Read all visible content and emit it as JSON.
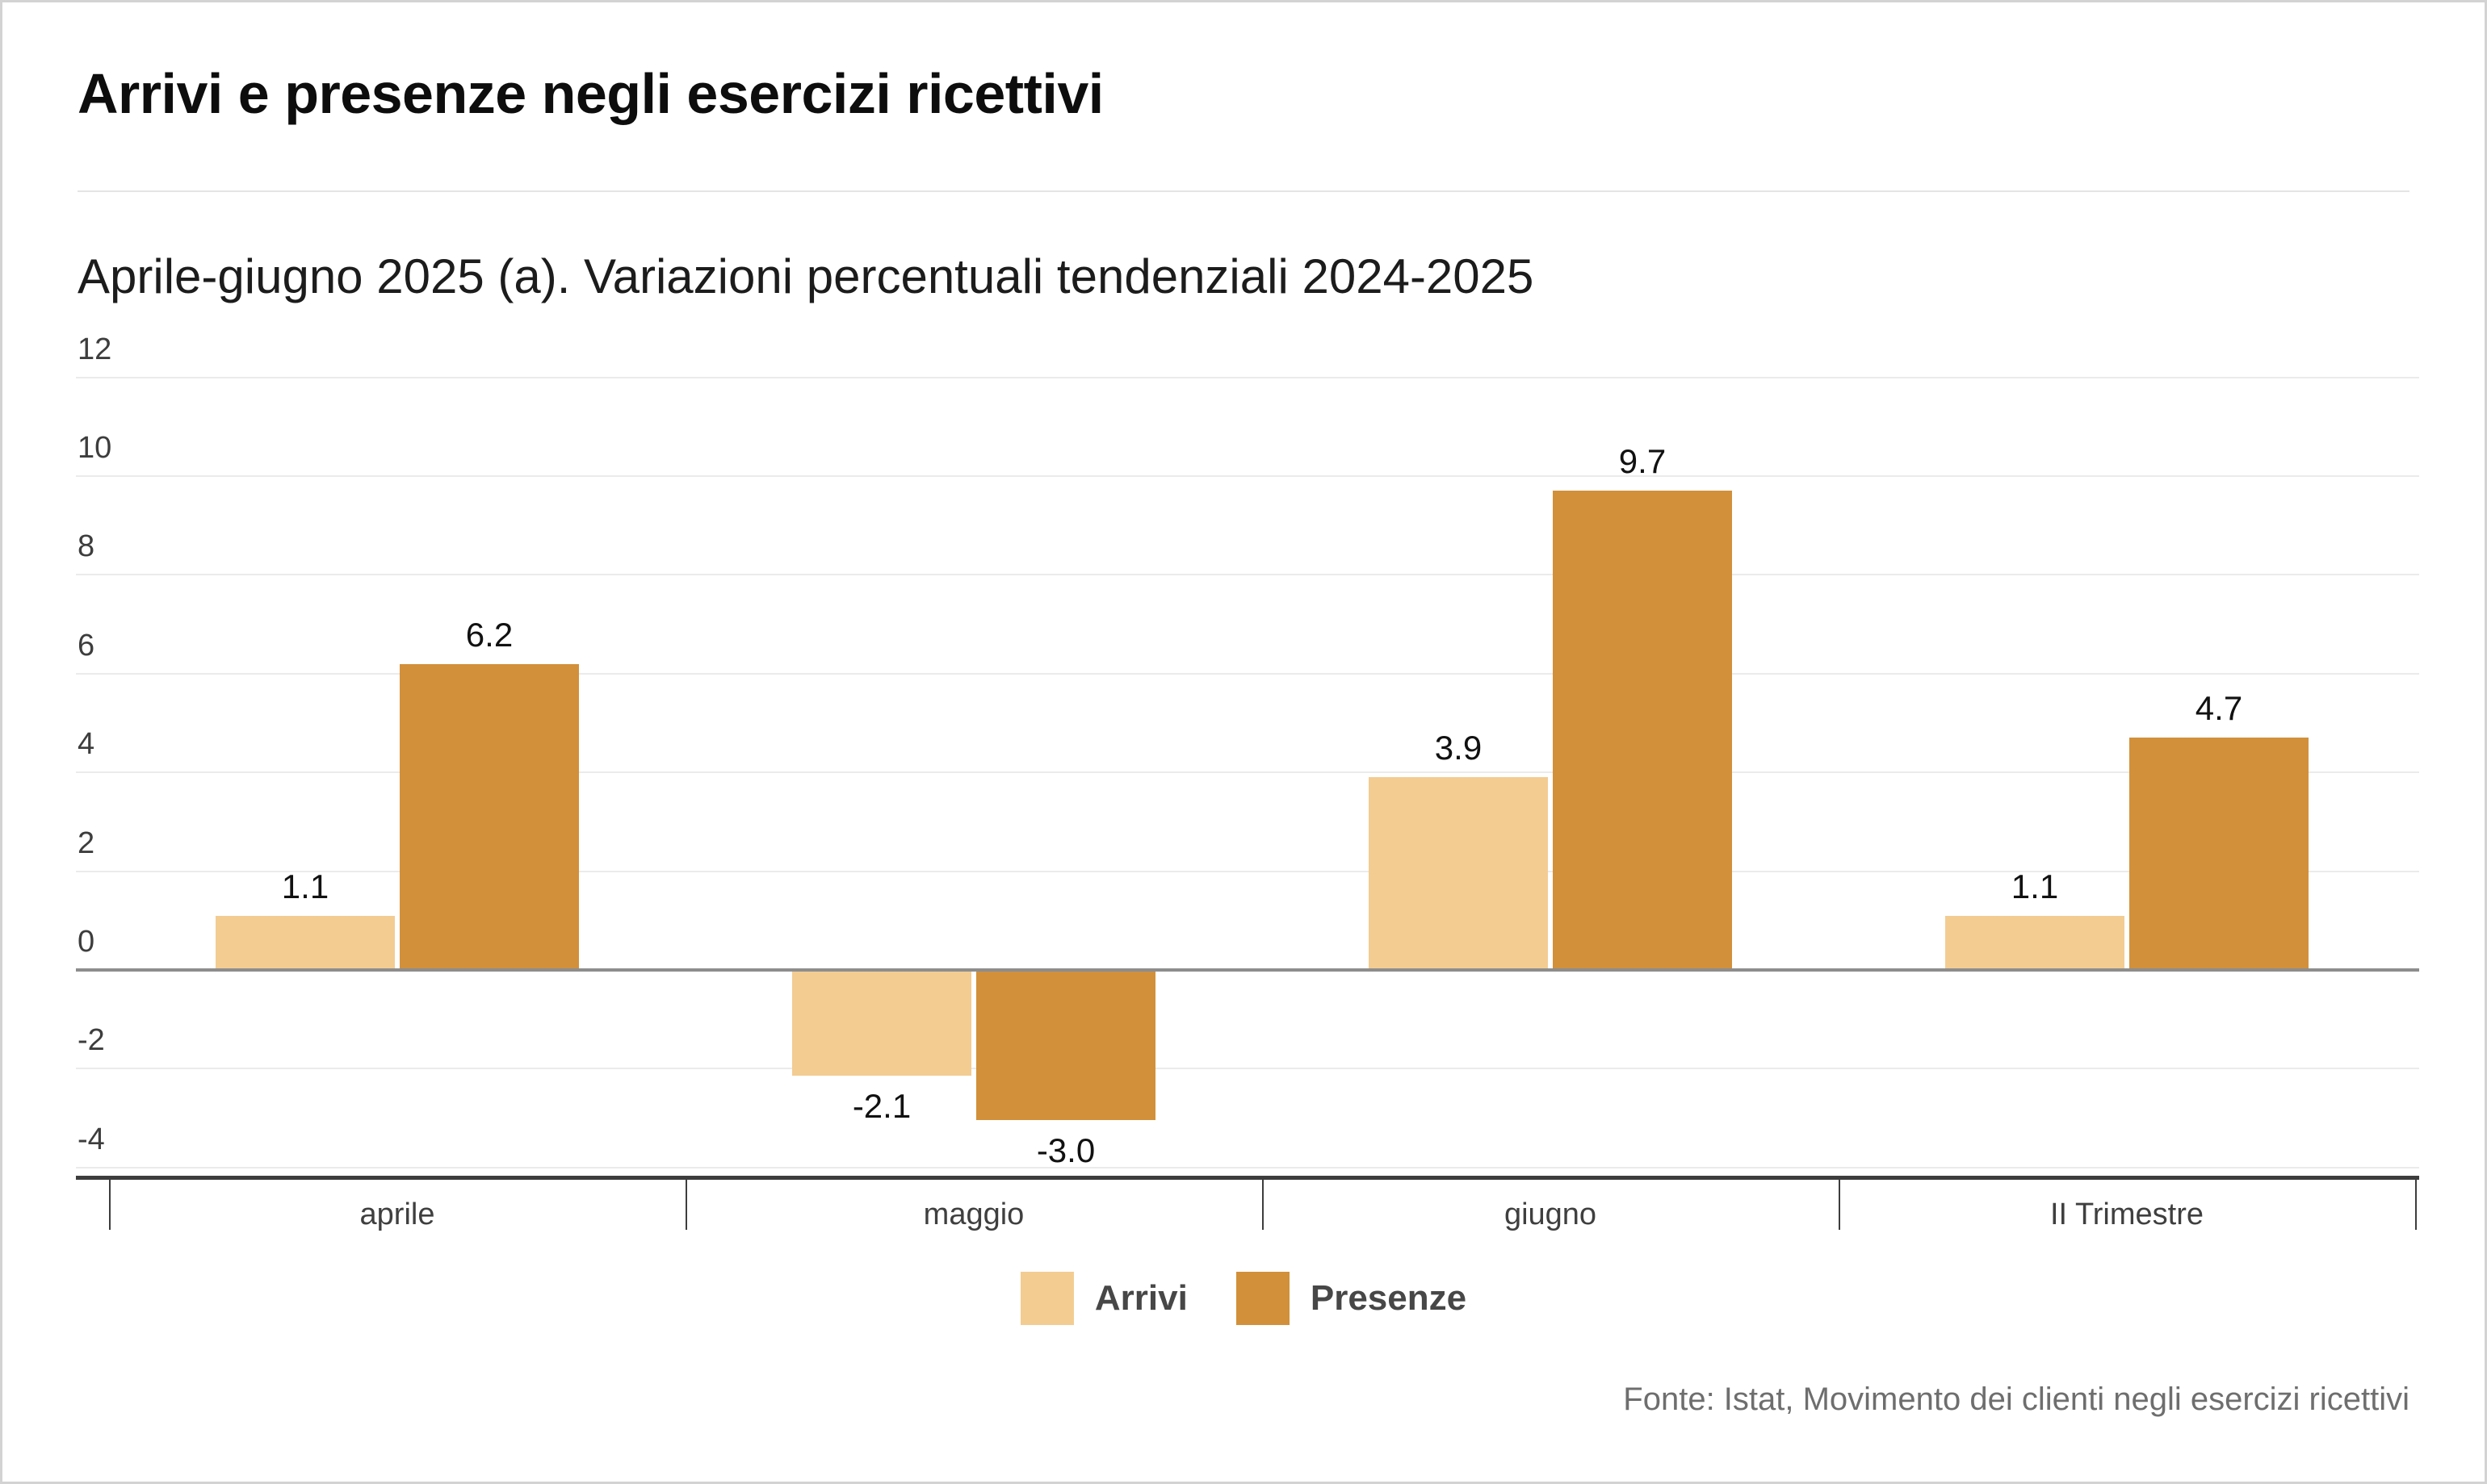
{
  "title": "Arrivi e presenze negli esercizi ricettivi",
  "subtitle": "Aprile-giugno 2025 (a). Variazioni percentuali tendenziali 2024-2025",
  "source": "Fonte: Istat, Movimento dei clienti negli esercizi ricettivi",
  "legend": {
    "items": [
      {
        "label": "Arrivi",
        "color": "#F3CC92"
      },
      {
        "label": "Presenze",
        "color": "#D2903A"
      }
    ]
  },
  "chart_data": {
    "type": "bar",
    "title": "Arrivi e presenze negli esercizi ricettivi",
    "subtitle": "Aprile-giugno 2025 (a). Variazioni percentuali tendenziali 2024-2025",
    "categories": [
      "aprile",
      "maggio",
      "giugno",
      "II Trimestre"
    ],
    "series": [
      {
        "name": "Arrivi",
        "color": "#F3CC92",
        "values": [
          1.1,
          -2.1,
          3.9,
          1.1
        ],
        "value_labels": [
          "1.1",
          "-2.1",
          "3.9",
          "1.1"
        ]
      },
      {
        "name": "Presenze",
        "color": "#D2903A",
        "values": [
          6.2,
          -3.0,
          9.7,
          4.7
        ],
        "value_labels": [
          "6.2",
          "-3.0",
          "9.7",
          "4.7"
        ]
      }
    ],
    "xlabel": "",
    "ylabel": "",
    "ylim": [
      -4,
      12
    ],
    "yticks": [
      12,
      10,
      8,
      6,
      4,
      2,
      0,
      -2,
      -4
    ],
    "grid": true,
    "legend_position": "bottom"
  },
  "colors": {
    "arrivi": "#F3CC92",
    "presenze": "#D2903A",
    "gridline": "#EBEBEB",
    "zero_line": "#8D8D8D",
    "axis_line": "#3D3D3D",
    "value_text": "#111111",
    "source_text": "#6E6E6E"
  }
}
